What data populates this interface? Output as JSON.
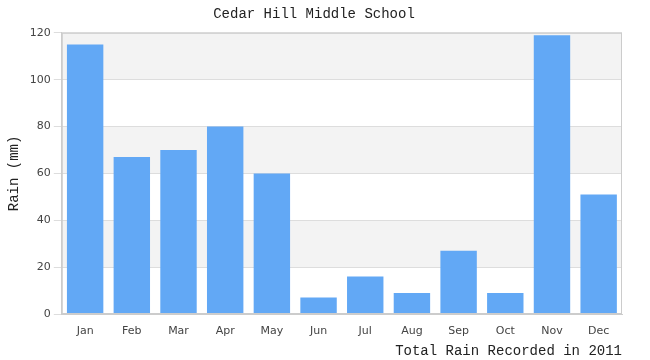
{
  "chart_data": {
    "type": "bar",
    "title": "Cedar Hill Middle School",
    "x_label": "Total Rain Recorded in 2011",
    "y_label": "Rain (mm)",
    "categories": [
      "Jan",
      "Feb",
      "Mar",
      "Apr",
      "May",
      "Jun",
      "Jul",
      "Aug",
      "Sep",
      "Oct",
      "Nov",
      "Dec"
    ],
    "values": [
      115,
      67,
      70,
      80,
      60,
      7,
      16,
      9,
      27,
      9,
      119,
      51
    ],
    "color": "#62a8f5",
    "ylim": [
      0,
      120
    ],
    "yticks": [
      0,
      20,
      40,
      60,
      80,
      100,
      120
    ],
    "grid": true
  }
}
